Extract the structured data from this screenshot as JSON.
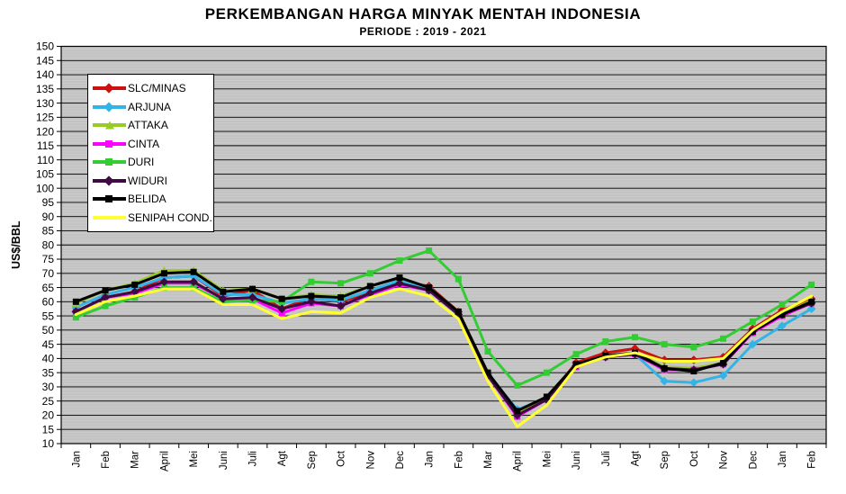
{
  "chart_data": {
    "type": "line",
    "title": "PERKEMBANGAN HARGA MINYAK MENTAH INDONESIA",
    "subtitle": "PERIODE : 2019 - 2021",
    "ylabel": "US$/BBL",
    "ylim": [
      10,
      150
    ],
    "ytick_step": 5,
    "grid": true,
    "plot_bg": "#c3c3c3",
    "legend_position": "top-left-inside",
    "categories": [
      "Jan",
      "Feb",
      "Mar",
      "April",
      "Mei",
      "Juni",
      "Juli",
      "Agt",
      "Sep",
      "Oct",
      "Nov",
      "Dec",
      "Jan",
      "Feb",
      "Mar",
      "April",
      "Mei",
      "Juni",
      "Juli",
      "Agt",
      "Sep",
      "Oct",
      "Nov",
      "Dec",
      "Jan",
      "Feb"
    ],
    "series": [
      {
        "name": "SLC/MINAS",
        "color": "#cc1111",
        "marker": "diamond",
        "values": [
          56.5,
          61.5,
          63.5,
          68.5,
          69,
          62,
          64,
          57.5,
          61.5,
          60,
          63.5,
          67,
          65.5,
          56.5,
          34.5,
          20.5,
          25.5,
          38.5,
          42,
          43.5,
          39.5,
          39.5,
          40.5,
          50.5,
          57,
          61
        ]
      },
      {
        "name": "ARJUNA",
        "color": "#33b3e6",
        "marker": "diamond",
        "values": [
          58,
          62.5,
          65,
          68.5,
          69,
          62.5,
          62.5,
          59.5,
          61,
          60.5,
          64,
          67.5,
          64.5,
          56,
          34.5,
          22,
          26,
          37.5,
          40.5,
          41.5,
          32,
          31.5,
          34,
          45,
          51.5,
          57.5
        ]
      },
      {
        "name": "ATTAKA",
        "color": "#99cc22",
        "marker": "triangle",
        "values": [
          59.5,
          64,
          66.5,
          71,
          71,
          64,
          64.5,
          61,
          62.5,
          62,
          65.5,
          68.5,
          65,
          56.5,
          35,
          21,
          26.5,
          38,
          41,
          42,
          37,
          36.5,
          38.5,
          49.5,
          55.5,
          60.5
        ]
      },
      {
        "name": "CINTA",
        "color": "#ff00ff",
        "marker": "square",
        "values": [
          56.5,
          61.5,
          63,
          66.5,
          66.5,
          61,
          61,
          56,
          59.5,
          58.5,
          62.5,
          66,
          64,
          55.5,
          34,
          19.5,
          25.5,
          37,
          40.5,
          41.5,
          36,
          36,
          38,
          49,
          55,
          59.5
        ]
      },
      {
        "name": "DURI",
        "color": "#33cc33",
        "marker": "square",
        "values": [
          54.5,
          58.5,
          61.5,
          65,
          65,
          60,
          60.5,
          60,
          67,
          66.5,
          70,
          74.5,
          78,
          68,
          42.5,
          30.5,
          35,
          41.5,
          46,
          47.5,
          45,
          44,
          47,
          53,
          59,
          66
        ]
      },
      {
        "name": "WIDURI",
        "color": "#3e0a42",
        "marker": "diamond",
        "values": [
          56.5,
          61.5,
          63.5,
          67,
          67,
          61,
          61.5,
          57.5,
          60,
          58.5,
          63,
          66.5,
          64,
          55.5,
          34,
          20,
          25.5,
          37.5,
          40.5,
          41.5,
          36.5,
          36,
          38,
          49.5,
          55.5,
          59.5
        ]
      },
      {
        "name": "BELIDA",
        "color": "#000000",
        "marker": "square",
        "values": [
          60,
          64,
          66,
          70,
          70.5,
          63.5,
          64.5,
          61,
          62,
          61.5,
          65.5,
          68.5,
          65,
          56.5,
          35,
          21.5,
          26.5,
          38,
          41,
          42,
          36.5,
          35.5,
          38.5,
          49.5,
          55.5,
          60
        ]
      },
      {
        "name": "SENIPAH COND.",
        "color": "#ffff33",
        "marker": "none",
        "values": [
          55.5,
          60,
          62,
          64.5,
          64.5,
          59,
          59,
          54,
          56.5,
          56,
          61.5,
          64.5,
          62,
          54,
          32,
          16,
          23.5,
          37,
          40.5,
          42,
          39,
          39,
          40,
          50,
          56.5,
          62
        ]
      }
    ]
  }
}
